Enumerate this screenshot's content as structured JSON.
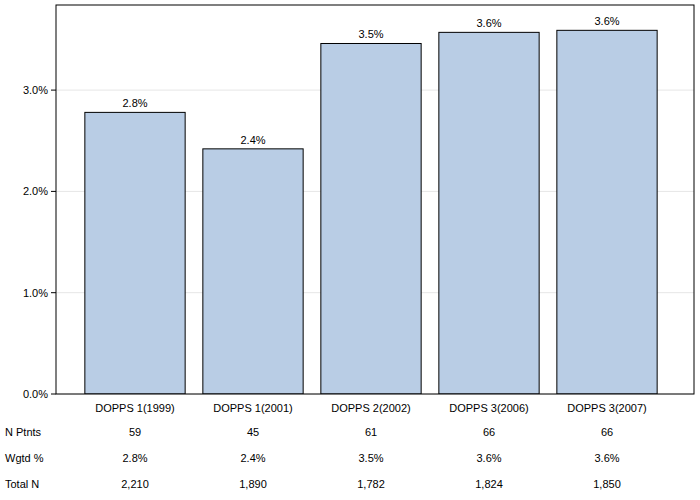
{
  "chart_data": {
    "type": "bar",
    "categories": [
      "DOPPS 1(1999)",
      "DOPPS 1(2001)",
      "DOPPS 2(2002)",
      "DOPPS 3(2006)",
      "DOPPS 3(2007)"
    ],
    "values": [
      2.78,
      2.42,
      3.46,
      3.57,
      3.59
    ],
    "value_labels": [
      "2.8%",
      "2.4%",
      "3.5%",
      "3.6%",
      "3.6%"
    ],
    "data_labels": true,
    "color": "#b9cde5",
    "ylim": [
      0,
      3.84
    ],
    "yticks": [
      {
        "value": 0,
        "label": "0.0%"
      },
      {
        "value": 1,
        "label": "1.0%"
      },
      {
        "value": 2,
        "label": "2.0%"
      },
      {
        "value": 3,
        "label": "3.0%"
      }
    ],
    "grid": true
  },
  "table": {
    "rows": [
      {
        "label": "N Ptnts",
        "cells": [
          "59",
          "45",
          "61",
          "66",
          "66"
        ]
      },
      {
        "label": "Wgtd %",
        "cells": [
          "2.8%",
          "2.4%",
          "3.5%",
          "3.6%",
          "3.6%"
        ]
      },
      {
        "label": "Total N",
        "cells": [
          "2,210",
          "1,890",
          "1,782",
          "1,824",
          "1,850"
        ]
      }
    ]
  }
}
